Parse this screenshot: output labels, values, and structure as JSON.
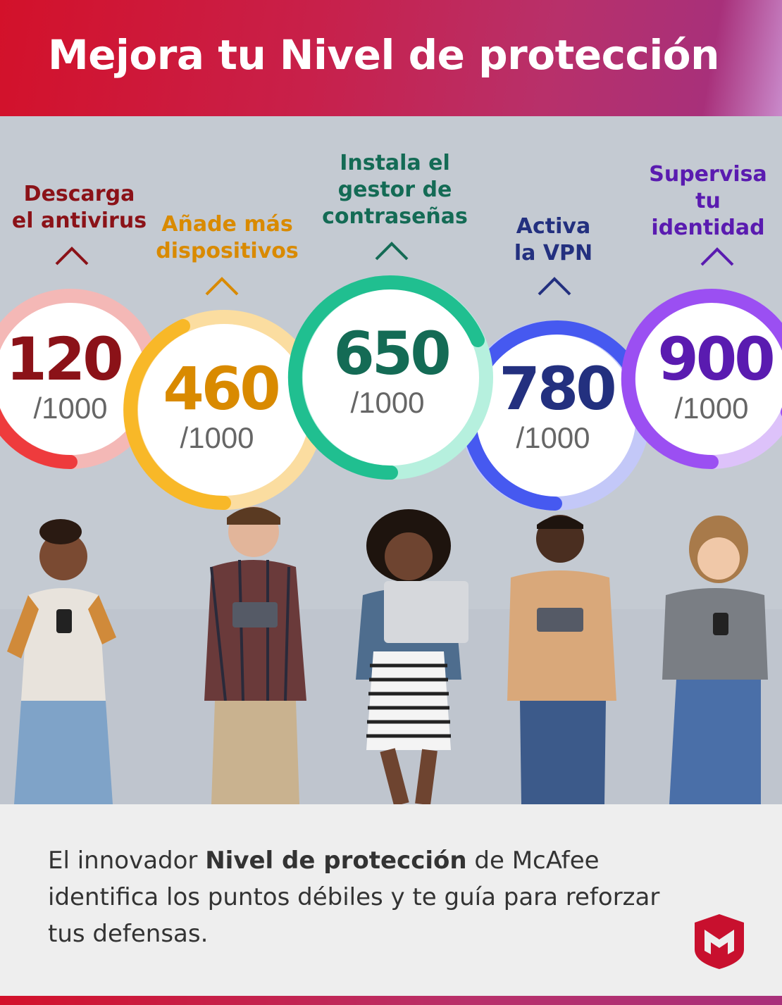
{
  "header": {
    "title": "Mejora tu Nivel de protección"
  },
  "steps": [
    {
      "label_line1": "Descarga",
      "label_line2": "el antivirus",
      "score": "120",
      "denominator": "/1000",
      "color": "#8b1218",
      "progress": 0.12
    },
    {
      "label_line1": "Añade más",
      "label_line2": "dispositivos",
      "score": "460",
      "denominator": "/1000",
      "color": "#d98a00",
      "progress": 0.46
    },
    {
      "label_line1": "Instala el",
      "label_line2": "gestor de",
      "label_line3": "contraseñas",
      "score": "650",
      "denominator": "/1000",
      "color": "#146b55",
      "progress": 0.65
    },
    {
      "label_line1": "Activa",
      "label_line2": "la VPN",
      "score": "780",
      "denominator": "/1000",
      "color": "#23307f",
      "progress": 0.78
    },
    {
      "label_line1": "Supervisa",
      "label_line2": "tu",
      "label_line3": "identidad",
      "score": "900",
      "denominator": "/1000",
      "color": "#5a1bb0",
      "progress": 0.9
    }
  ],
  "footer": {
    "text_prefix": "El innovador ",
    "text_bold": "Nivel de protección",
    "text_suffix": " de McAfee identifica los puntos débiles y te guía para reforzar tus defensas."
  },
  "logo": {
    "icon": "mcafee-shield-icon",
    "color": "#c8102e"
  }
}
